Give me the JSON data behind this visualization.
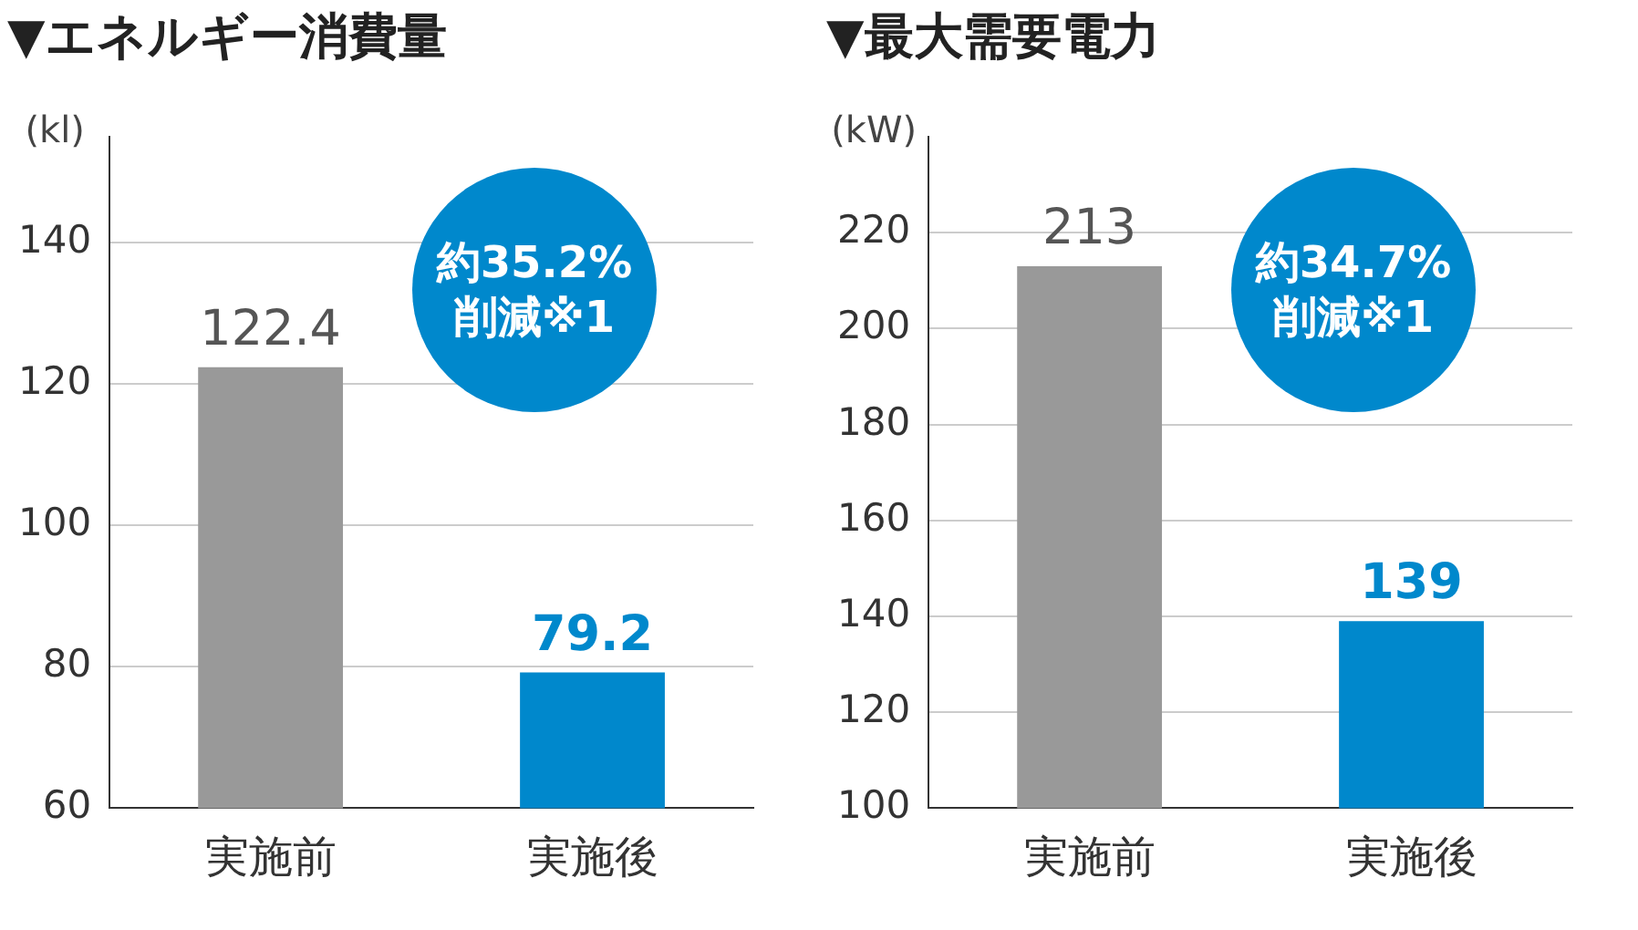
{
  "chart_data": [
    {
      "type": "bar",
      "title": "▼エネルギー消費量",
      "ylabel": "(kl)",
      "categories": [
        "実施前",
        "実施後"
      ],
      "values": [
        122.4,
        79.2
      ],
      "colors": [
        "#999999",
        "#0088cc"
      ],
      "ylim": [
        60,
        155
      ],
      "yticks": [
        60,
        80,
        100,
        120,
        140
      ],
      "grid": "y",
      "legend": false,
      "data_labels": true,
      "annotations": [
        "約35.2%削減※1"
      ]
    },
    {
      "type": "bar",
      "title": "▼最大需要電力",
      "ylabel": "(kW)",
      "categories": [
        "実施前",
        "実施後"
      ],
      "values": [
        213,
        139
      ],
      "colors": [
        "#999999",
        "#0088cc"
      ],
      "ylim": [
        100,
        240
      ],
      "yticks": [
        100,
        120,
        140,
        160,
        180,
        200,
        220
      ],
      "grid": "y",
      "legend": false,
      "data_labels": true,
      "annotations": [
        "約34.7%削減※1"
      ]
    }
  ]
}
